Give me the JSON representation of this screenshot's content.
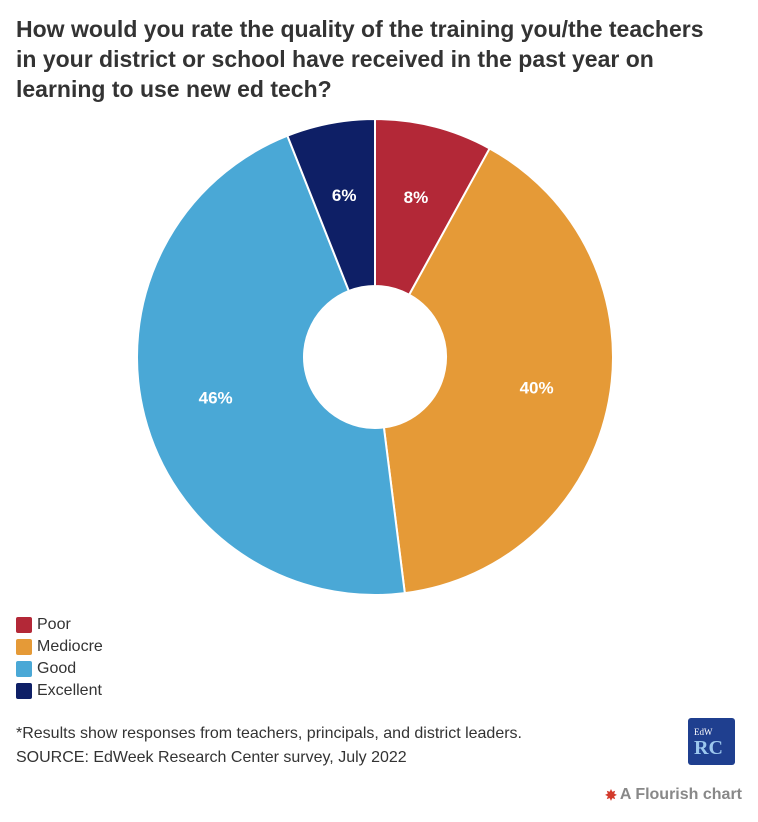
{
  "chart_data": {
    "type": "pie",
    "variant": "donut",
    "title": "How would you rate the quality of the training you/the teachers in your district or school have received in the past year on learning to use new ed tech?",
    "categories": [
      "Poor",
      "Mediocre",
      "Good",
      "Excellent"
    ],
    "values": [
      8,
      40,
      46,
      6
    ],
    "labels": [
      "8%",
      "40%",
      "46%",
      "6%"
    ],
    "colors": [
      "#b32837",
      "#e59a37",
      "#4aa8d6",
      "#0e1f66"
    ],
    "legend_position": "bottom-left"
  },
  "footnote": {
    "note": "*Results show responses from teachers, principals, and district leaders.",
    "source": "SOURCE: EdWeek Research Center survey, July 2022"
  },
  "logo": {
    "line1": "EdW",
    "line2": "RC"
  },
  "credit": {
    "text": "A Flourish chart"
  }
}
